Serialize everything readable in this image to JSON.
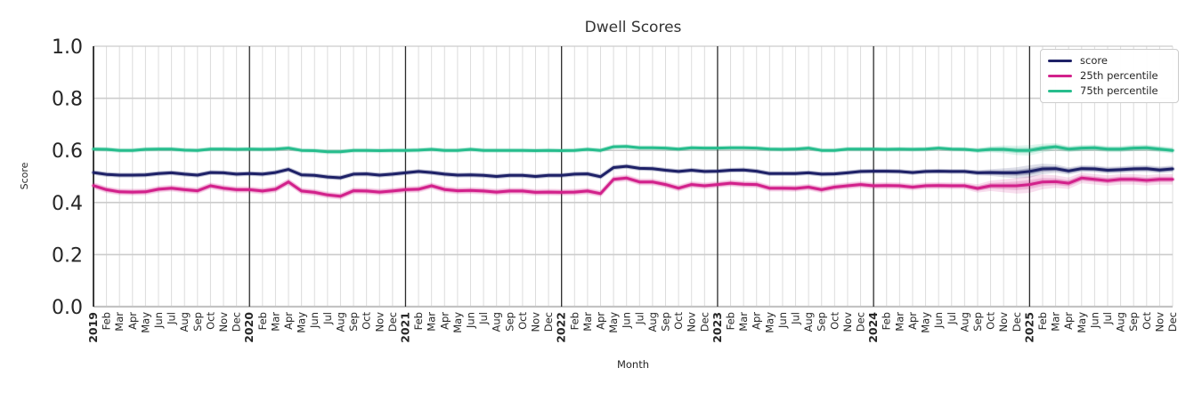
{
  "chart_data": {
    "type": "line",
    "title": "Dwell Scores",
    "xlabel": "Month",
    "ylabel": "Score",
    "ylim": [
      0.0,
      1.0
    ],
    "yticks": [
      0.0,
      0.2,
      0.4,
      0.6,
      0.8,
      1.0
    ],
    "grid": true,
    "legend_position": "upper right",
    "x_tick_labels": [
      "2019",
      "Feb",
      "Mar",
      "Apr",
      "May",
      "Jun",
      "Jul",
      "Aug",
      "Sep",
      "Oct",
      "Nov",
      "Dec",
      "2020",
      "Feb",
      "Mar",
      "Apr",
      "May",
      "Jun",
      "Jul",
      "Aug",
      "Sep",
      "Oct",
      "Nov",
      "Dec",
      "2021",
      "Feb",
      "Mar",
      "Apr",
      "May",
      "Jun",
      "Jul",
      "Aug",
      "Sep",
      "Oct",
      "Nov",
      "Dec",
      "2022",
      "Feb",
      "Mar",
      "Apr",
      "May",
      "Jun",
      "Jul",
      "Aug",
      "Sep",
      "Oct",
      "Nov",
      "Dec",
      "2023",
      "Feb",
      "Mar",
      "Apr",
      "May",
      "Jun",
      "Jul",
      "Aug",
      "Sep",
      "Oct",
      "Nov",
      "Dec",
      "2024",
      "Feb",
      "Mar",
      "Apr",
      "May",
      "Jun",
      "Jul",
      "Aug",
      "Sep",
      "Oct",
      "Nov",
      "Dec",
      "2025",
      "Feb",
      "Mar",
      "Apr",
      "May",
      "Jun",
      "Jul",
      "Aug",
      "Sep",
      "Oct",
      "Nov",
      "Dec"
    ],
    "year_tick_indices": [
      0,
      12,
      24,
      36,
      48,
      60,
      72
    ],
    "colors": {
      "text": "#262626",
      "title": "#333333",
      "grid_minor": "#dcdcdc",
      "grid_major": "#cccccc",
      "baseline": "#c3c3c3",
      "spine": "#262626",
      "year_line": "#2b2b2b"
    },
    "series": [
      {
        "name": "score",
        "color": "#1e2167",
        "values": [
          0.515,
          0.508,
          0.505,
          0.505,
          0.506,
          0.511,
          0.514,
          0.509,
          0.505,
          0.515,
          0.514,
          0.509,
          0.511,
          0.509,
          0.515,
          0.527,
          0.506,
          0.504,
          0.498,
          0.495,
          0.509,
          0.51,
          0.505,
          0.509,
          0.514,
          0.519,
          0.515,
          0.509,
          0.505,
          0.506,
          0.504,
          0.5,
          0.504,
          0.504,
          0.5,
          0.504,
          0.504,
          0.509,
          0.51,
          0.499,
          0.534,
          0.539,
          0.531,
          0.53,
          0.524,
          0.519,
          0.524,
          0.519,
          0.52,
          0.524,
          0.525,
          0.52,
          0.511,
          0.511,
          0.511,
          0.514,
          0.509,
          0.51,
          0.514,
          0.519,
          0.52,
          0.52,
          0.519,
          0.515,
          0.519,
          0.52,
          0.519,
          0.519,
          0.514,
          0.515,
          0.514,
          0.514,
          0.519,
          0.529,
          0.53,
          0.521,
          0.53,
          0.529,
          0.524,
          0.526,
          0.529,
          0.53,
          0.525,
          0.529
        ],
        "band_default": 0.008,
        "band_tail_start": 68,
        "band_tail": [
          0.01,
          0.013,
          0.017,
          0.021,
          0.024,
          0.02,
          0.016,
          0.014,
          0.013,
          0.013,
          0.013,
          0.013,
          0.013,
          0.013,
          0.013,
          0.013
        ]
      },
      {
        "name": "25th percentile",
        "color": "#d2218b",
        "values": [
          0.465,
          0.449,
          0.441,
          0.44,
          0.441,
          0.451,
          0.455,
          0.449,
          0.445,
          0.464,
          0.455,
          0.449,
          0.449,
          0.444,
          0.451,
          0.479,
          0.444,
          0.439,
          0.429,
          0.424,
          0.445,
          0.444,
          0.44,
          0.444,
          0.449,
          0.451,
          0.464,
          0.45,
          0.445,
          0.446,
          0.444,
          0.44,
          0.444,
          0.444,
          0.439,
          0.44,
          0.439,
          0.44,
          0.444,
          0.434,
          0.489,
          0.494,
          0.479,
          0.479,
          0.469,
          0.455,
          0.469,
          0.464,
          0.469,
          0.474,
          0.47,
          0.469,
          0.455,
          0.455,
          0.454,
          0.459,
          0.449,
          0.459,
          0.464,
          0.469,
          0.464,
          0.465,
          0.464,
          0.459,
          0.464,
          0.465,
          0.464,
          0.464,
          0.454,
          0.464,
          0.464,
          0.464,
          0.469,
          0.479,
          0.48,
          0.474,
          0.494,
          0.489,
          0.484,
          0.489,
          0.489,
          0.485,
          0.489,
          0.489
        ],
        "band_default": 0.013,
        "band_tail_start": 68,
        "band_tail": [
          0.016,
          0.02,
          0.025,
          0.03,
          0.032,
          0.028,
          0.024,
          0.022,
          0.02,
          0.02,
          0.02,
          0.02,
          0.02,
          0.02,
          0.02,
          0.02
        ]
      },
      {
        "name": "75th percentile",
        "color": "#27bd8d",
        "values": [
          0.605,
          0.604,
          0.6,
          0.6,
          0.604,
          0.605,
          0.605,
          0.601,
          0.6,
          0.605,
          0.605,
          0.604,
          0.605,
          0.604,
          0.605,
          0.609,
          0.6,
          0.599,
          0.595,
          0.595,
          0.6,
          0.6,
          0.599,
          0.6,
          0.6,
          0.601,
          0.604,
          0.6,
          0.6,
          0.604,
          0.6,
          0.6,
          0.6,
          0.6,
          0.599,
          0.6,
          0.599,
          0.6,
          0.604,
          0.6,
          0.614,
          0.615,
          0.61,
          0.61,
          0.609,
          0.605,
          0.61,
          0.609,
          0.609,
          0.61,
          0.61,
          0.609,
          0.605,
          0.604,
          0.605,
          0.609,
          0.6,
          0.6,
          0.605,
          0.605,
          0.605,
          0.604,
          0.605,
          0.604,
          0.605,
          0.609,
          0.605,
          0.604,
          0.6,
          0.604,
          0.604,
          0.6,
          0.6,
          0.609,
          0.614,
          0.605,
          0.609,
          0.61,
          0.605,
          0.605,
          0.609,
          0.61,
          0.605,
          0.6
        ],
        "band_default": 0.007,
        "band_tail_start": 68,
        "band_tail": [
          0.009,
          0.012,
          0.015,
          0.018,
          0.02,
          0.017,
          0.014,
          0.012,
          0.012,
          0.012,
          0.012,
          0.012,
          0.012,
          0.012,
          0.012,
          0.012
        ]
      }
    ]
  }
}
